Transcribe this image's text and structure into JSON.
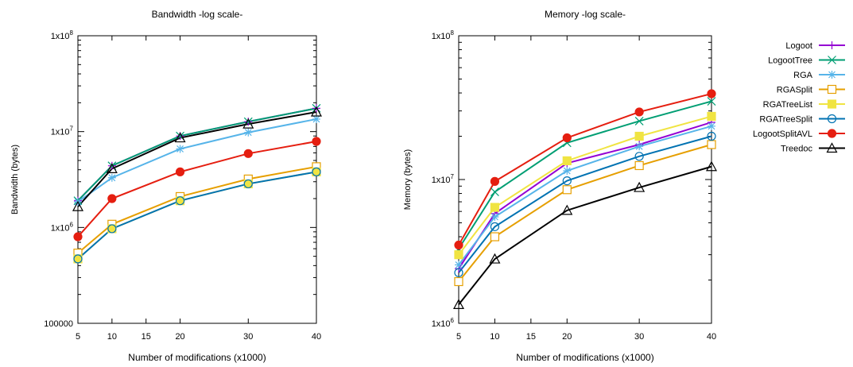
{
  "colors": {
    "Logoot": "#9400d3",
    "LogootTree": "#009e73",
    "RGA": "#56b4e9",
    "RGASplit": "#e69f00",
    "RGATreeList": "#f0e442",
    "RGATreeSplit": "#0072b2",
    "LogootSplitAVL": "#e51e10",
    "Treedoc": "#000000"
  },
  "legend": {
    "placement": "right",
    "entries": [
      {
        "name": "Logoot",
        "marker": "plus"
      },
      {
        "name": "LogootTree",
        "marker": "cross"
      },
      {
        "name": "RGA",
        "marker": "star"
      },
      {
        "name": "RGASplit",
        "marker": "open-square"
      },
      {
        "name": "RGATreeList",
        "marker": "filled-square"
      },
      {
        "name": "RGATreeSplit",
        "marker": "open-circle"
      },
      {
        "name": "LogootSplitAVL",
        "marker": "filled-circle"
      },
      {
        "name": "Treedoc",
        "marker": "open-triangle"
      }
    ]
  },
  "chart_data": [
    {
      "type": "line",
      "title": "Bandwidth -log scale-",
      "xlabel": "Number of modifications (x1000)",
      "ylabel": "Bandwidth (bytes)",
      "xlim": [
        5,
        40
      ],
      "xticks": [
        5,
        10,
        15,
        20,
        30,
        40
      ],
      "ylim": [
        100000,
        100000000
      ],
      "yscale": "log",
      "yticks": [
        {
          "value": 100000,
          "label": "100000"
        },
        {
          "value": 1000000,
          "label": "1x10^6"
        },
        {
          "value": 10000000,
          "label": "1x10^7"
        },
        {
          "value": 100000000,
          "label": "1x10^8"
        }
      ],
      "grid": false,
      "x": [
        5,
        10,
        20,
        30,
        40
      ],
      "series": [
        {
          "name": "Logoot",
          "values": [
            1900000,
            4400000,
            9000000,
            12700000,
            17500000
          ]
        },
        {
          "name": "LogootTree",
          "values": [
            1900000,
            4400000,
            9000000,
            12700000,
            17500000
          ]
        },
        {
          "name": "RGA",
          "values": [
            1850000,
            3300000,
            6600000,
            9800000,
            13500000
          ]
        },
        {
          "name": "RGASplit",
          "values": [
            540000,
            1080000,
            2100000,
            3200000,
            4300000
          ]
        },
        {
          "name": "RGATreeList",
          "values": [
            470000,
            970000,
            1900000,
            2850000,
            3800000
          ]
        },
        {
          "name": "RGATreeSplit",
          "values": [
            470000,
            970000,
            1900000,
            2850000,
            3800000
          ]
        },
        {
          "name": "LogootSplitAVL",
          "values": [
            800000,
            2000000,
            3800000,
            5900000,
            7900000
          ]
        },
        {
          "name": "Treedoc",
          "values": [
            1650000,
            4100000,
            8600000,
            12000000,
            16000000
          ]
        }
      ]
    },
    {
      "type": "line",
      "title": "Memory -log scale-",
      "xlabel": "Number of modifications (x1000)",
      "ylabel": "Memory (bytes)",
      "xlim": [
        5,
        40
      ],
      "xticks": [
        5,
        10,
        15,
        20,
        30,
        40
      ],
      "ylim": [
        1000000,
        100000000
      ],
      "yscale": "log",
      "yticks": [
        {
          "value": 1000000,
          "label": "1x10^6"
        },
        {
          "value": 10000000,
          "label": "1x10^7"
        },
        {
          "value": 100000000,
          "label": "1x10^8"
        }
      ],
      "grid": false,
      "x": [
        5,
        10,
        20,
        30,
        40
      ],
      "series": [
        {
          "name": "Logoot",
          "values": [
            2400000,
            5800000,
            13000000,
            17500000,
            25000000
          ]
        },
        {
          "name": "LogootTree",
          "values": [
            3300000,
            8200000,
            18000000,
            25500000,
            35000000
          ]
        },
        {
          "name": "RGA",
          "values": [
            2550000,
            5500000,
            11500000,
            17000000,
            23500000
          ]
        },
        {
          "name": "RGASplit",
          "values": [
            1950000,
            4000000,
            8500000,
            12500000,
            17500000
          ]
        },
        {
          "name": "RGATreeList",
          "values": [
            3000000,
            6400000,
            13500000,
            20000000,
            27500000
          ]
        },
        {
          "name": "RGATreeSplit",
          "values": [
            2250000,
            4700000,
            9800000,
            14500000,
            20000000
          ]
        },
        {
          "name": "LogootSplitAVL",
          "values": [
            3500000,
            9700000,
            19500000,
            29500000,
            39500000
          ]
        },
        {
          "name": "Treedoc",
          "values": [
            1350000,
            2800000,
            6100000,
            8800000,
            12300000
          ]
        }
      ]
    }
  ]
}
